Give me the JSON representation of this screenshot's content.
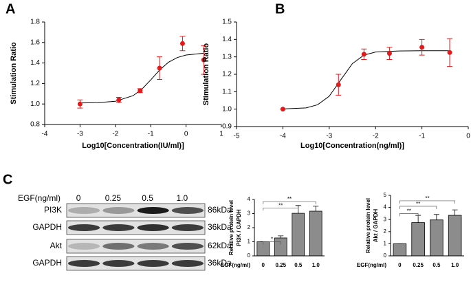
{
  "chart_data": [
    {
      "type": "scatter",
      "panel": "A",
      "ylabel": "Stimulation Ratio",
      "xlabel": "Log10[Concentration(IU/ml)]",
      "series": [
        {
          "color": "#e31a1c",
          "x": [
            -3,
            -1.9,
            -1.3,
            -0.75,
            -0.1,
            0.5
          ],
          "values": [
            1.0,
            1.04,
            1.13,
            1.35,
            1.59,
            1.43
          ],
          "errors": [
            0.04,
            0.025,
            0.02,
            0.11,
            0.07,
            0.14
          ]
        }
      ],
      "fit": {
        "color": "#000000",
        "x": [
          -3,
          -2.5,
          -2,
          -1.5,
          -1.25,
          -1,
          -0.75,
          -0.5,
          -0.25,
          0,
          0.5
        ],
        "values": [
          1.011,
          1.013,
          1.026,
          1.081,
          1.145,
          1.235,
          1.331,
          1.407,
          1.453,
          1.478,
          1.495
        ]
      },
      "xlim": [
        -4,
        1
      ],
      "xticks": [
        -4,
        -3,
        -2,
        -1,
        0,
        1
      ],
      "ylim": [
        0.8,
        1.8
      ],
      "yticks": [
        0.8,
        {
          "value": 1,
          "label": "1.0"
        },
        1.2,
        1.4,
        1.6,
        1.8
      ]
    },
    {
      "type": "scatter",
      "panel": "B",
      "ylabel": "Stimulation Ratio",
      "xlabel": "Log10[Concentration(ng/ml)]",
      "series": [
        {
          "color": "#e31a1c",
          "x": [
            -4,
            -2.8,
            -2.25,
            -1.7,
            -1,
            -0.4
          ],
          "values": [
            1.0,
            1.14,
            1.315,
            1.32,
            1.355,
            1.325
          ],
          "errors": [
            0,
            0.06,
            0.03,
            0.035,
            0.045,
            0.08
          ]
        }
      ],
      "fit": {
        "color": "#000000",
        "x": [
          -4,
          -3.5,
          -3.25,
          -3,
          -2.75,
          -2.5,
          -2.25,
          -2,
          -1.5,
          -1,
          -0.4
        ],
        "values": [
          1.001,
          1.007,
          1.025,
          1.074,
          1.168,
          1.261,
          1.31,
          1.328,
          1.334,
          1.335,
          1.335
        ]
      },
      "xlim": [
        -5,
        0
      ],
      "xticks": [
        -5,
        -4,
        -3,
        -2,
        -1,
        0
      ],
      "ylim": [
        0.9,
        1.5
      ],
      "yticks": [
        0.9,
        {
          "value": 1,
          "label": "1.0"
        },
        1.1,
        1.2,
        1.3,
        1.4,
        1.5
      ]
    },
    {
      "type": "bar",
      "ylabel": [
        "Relative protein level",
        "PI3K / GAPDH"
      ],
      "xlabel": "EGF(ng/ml)",
      "categories": [
        "0",
        "0.25",
        "0.5",
        "1.0"
      ],
      "values": [
        1,
        1.27,
        3.02,
        3.17
      ],
      "errors": [
        0,
        0.15,
        0.55,
        0.35
      ],
      "color": "#8c8c8c",
      "ylim": [
        0,
        4
      ],
      "yticks": [
        0,
        1,
        2,
        3,
        4
      ],
      "significance": [
        {
          "from": 0,
          "to": 1,
          "y": 1.0,
          "label": "*"
        },
        {
          "from": 0,
          "to": 2,
          "y": 3.4,
          "label": "**"
        },
        {
          "from": 0,
          "to": 3,
          "y": 3.85,
          "label": "**"
        }
      ]
    },
    {
      "type": "bar",
      "ylabel": [
        "Relative protein level",
        "Akt / GAPDH"
      ],
      "xlabel": "EGF(ng/ml)",
      "categories": [
        "0",
        "0.25",
        "0.5",
        "1.0"
      ],
      "values": [
        1,
        2.75,
        2.97,
        3.35
      ],
      "errors": [
        0,
        0.6,
        0.45,
        0.45
      ],
      "color": "#8c8c8c",
      "ylim": [
        0,
        5
      ],
      "yticks": [
        0,
        1,
        2,
        3,
        4,
        5
      ],
      "significance": [
        {
          "from": 0,
          "to": 1,
          "y": 3.5,
          "label": "**"
        },
        {
          "from": 0,
          "to": 2,
          "y": 4.1,
          "label": "**"
        },
        {
          "from": 0,
          "to": 3,
          "y": 4.55,
          "label": "**"
        }
      ]
    }
  ],
  "blot": {
    "panel": "C",
    "treatment_label": "EGF(ng/ml)",
    "doses": [
      "0",
      "0.25",
      "0.5",
      "1.0"
    ],
    "rows": [
      {
        "protein": "PI3K",
        "size": "86kDa"
      },
      {
        "protein": "GAPDH",
        "size": "36kDa"
      },
      {
        "protein": "Akt",
        "size": "62kDa"
      },
      {
        "protein": "GAPDH",
        "size": "36kDa"
      }
    ]
  }
}
